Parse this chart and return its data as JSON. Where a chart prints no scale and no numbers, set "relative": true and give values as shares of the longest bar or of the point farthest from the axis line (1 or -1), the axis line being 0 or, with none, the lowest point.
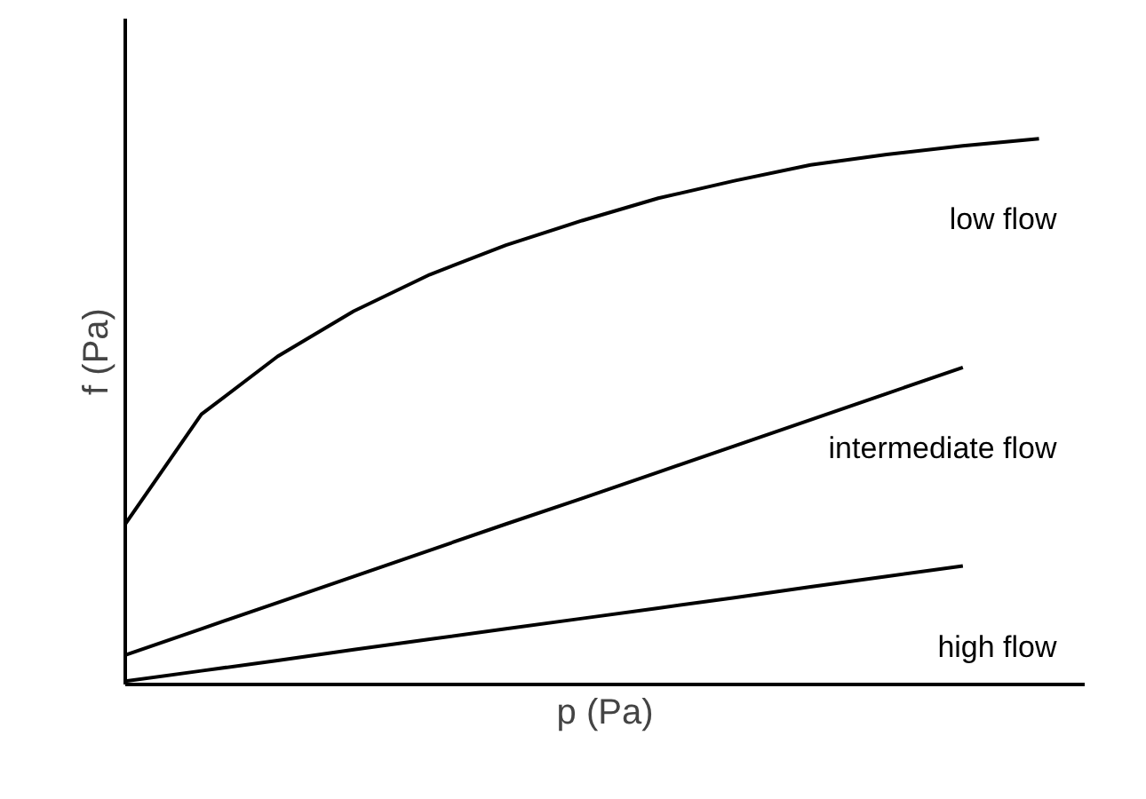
{
  "chart_data": {
    "type": "line",
    "relative": true,
    "xlabel": "p (Pa)",
    "ylabel": "f (Pa)",
    "categories": [
      null,
      null,
      null,
      null,
      null,
      null,
      null,
      null,
      null,
      null,
      null,
      null,
      null
    ],
    "series": [
      {
        "name": "low flow",
        "color": "#000000",
        "values": [
          0.294,
          0.495,
          0.601,
          0.684,
          0.751,
          0.805,
          0.85,
          0.891,
          0.923,
          0.952,
          0.971,
          0.987,
          1
        ]
      },
      {
        "name": "intermediate flow",
        "color": "#000000",
        "values": [
          0.054,
          0.102,
          0.15,
          0.198,
          0.246,
          0.294,
          0.341,
          0.389,
          0.437,
          0.485,
          0.533,
          0.581,
          null
        ]
      },
      {
        "name": "high flow",
        "color": "#000000",
        "values": [
          0.006,
          0.025,
          0.044,
          0.064,
          0.083,
          0.102,
          0.121,
          0.14,
          0.159,
          0.179,
          0.198,
          0.217,
          null
        ]
      }
    ],
    "marker": "none",
    "line_style": "solid"
  }
}
